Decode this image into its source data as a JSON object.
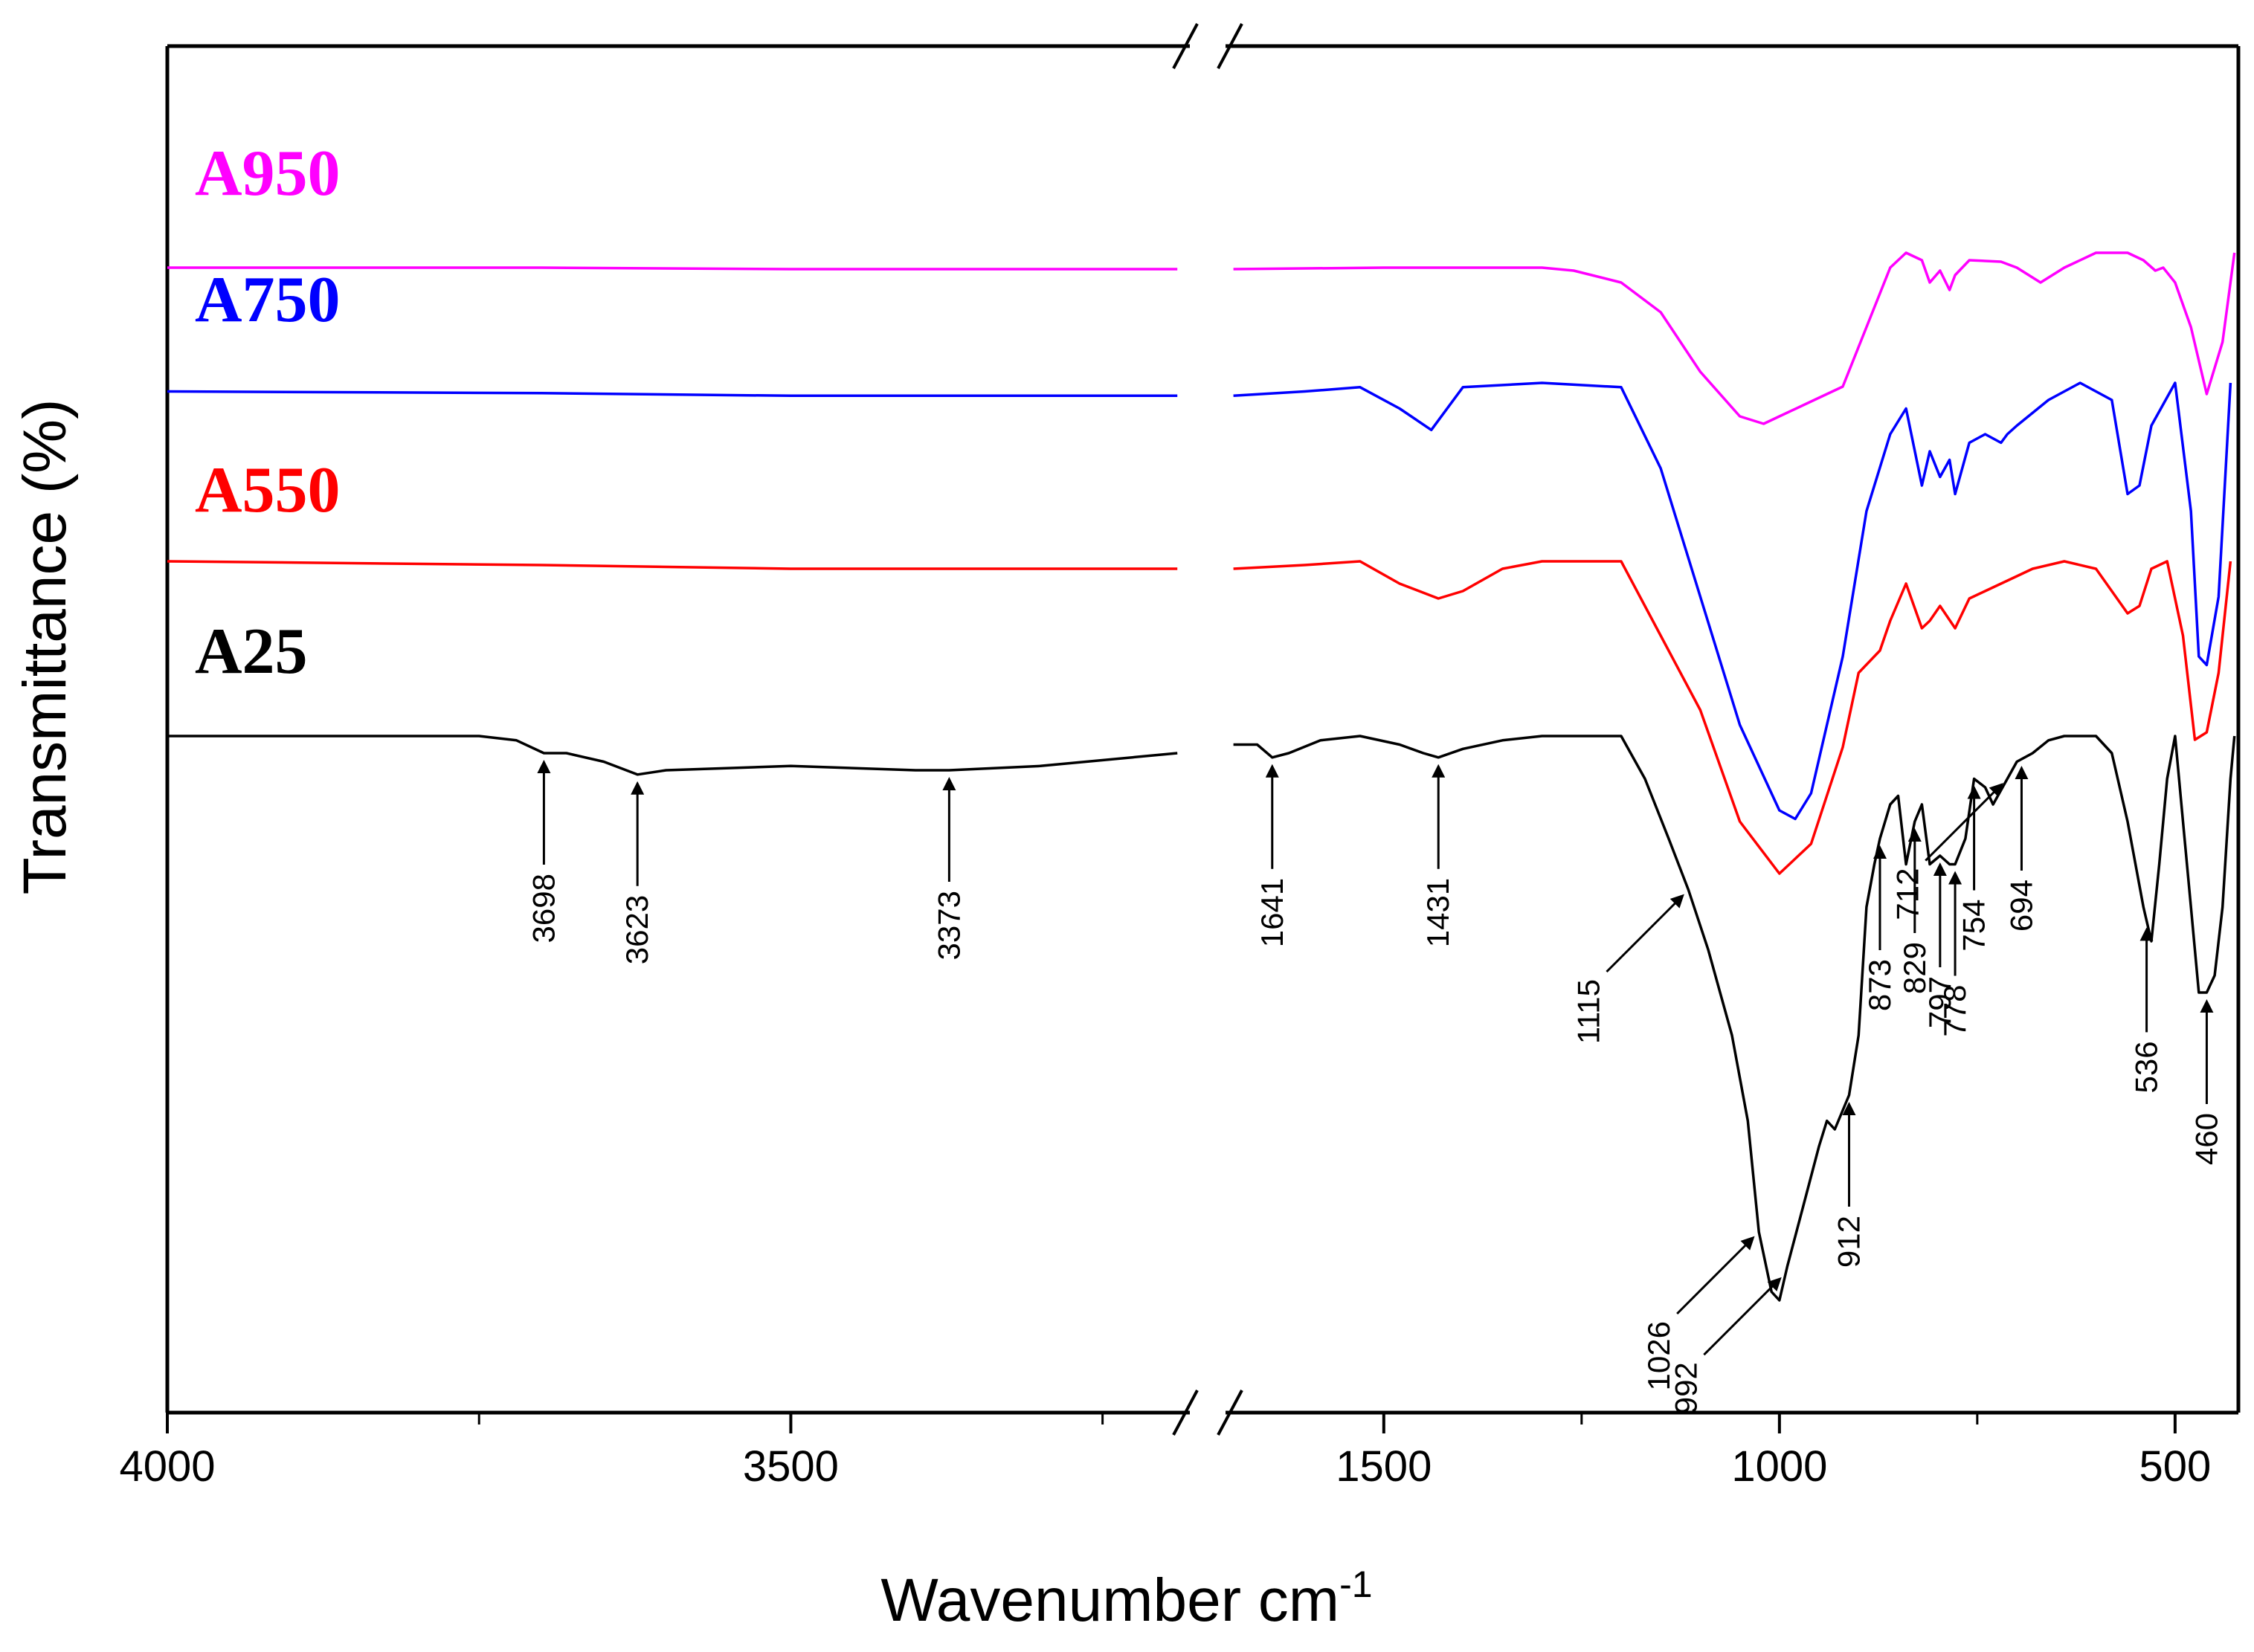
{
  "chart_data": {
    "type": "line",
    "title": "",
    "xlabel": "Wavenumber cm",
    "xlabel_sup": "-1",
    "ylabel": "Transmittance (%)",
    "x_axis": {
      "reversed": true,
      "broken": true,
      "segments": [
        {
          "range": [
            4000,
            3180
          ]
        },
        {
          "range": [
            1700,
            420
          ]
        }
      ],
      "ticks": [
        4000,
        3500,
        1500,
        1000,
        500
      ],
      "tick_labels": [
        "4000",
        "3500",
        "1500",
        "1000",
        "500"
      ],
      "minor_ticks": [
        3750,
        3250,
        1250,
        750
      ]
    },
    "series": [
      {
        "name": "A950",
        "color": "#ff00ff",
        "points": [
          [
            4000,
            0.1
          ],
          [
            3700,
            0.1
          ],
          [
            3500,
            0.11
          ],
          [
            3190,
            0.11
          ],
          [
            1690,
            0.11
          ],
          [
            1500,
            0.1
          ],
          [
            1300,
            0.1
          ],
          [
            1260,
            0.12
          ],
          [
            1200,
            0.2
          ],
          [
            1150,
            0.4
          ],
          [
            1100,
            0.8
          ],
          [
            1050,
            1.1
          ],
          [
            1020,
            1.15
          ],
          [
            1000,
            1.1
          ],
          [
            960,
            1.0
          ],
          [
            920,
            0.9
          ],
          [
            890,
            0.5
          ],
          [
            860,
            0.1
          ],
          [
            840,
            0.0
          ],
          [
            820,
            0.05
          ],
          [
            810,
            0.2
          ],
          [
            797,
            0.12
          ],
          [
            785,
            0.25
          ],
          [
            778,
            0.15
          ],
          [
            760,
            0.05
          ],
          [
            720,
            0.06
          ],
          [
            700,
            0.1
          ],
          [
            670,
            0.2
          ],
          [
            640,
            0.1
          ],
          [
            600,
            0.0
          ],
          [
            560,
            0.0
          ],
          [
            540,
            0.05
          ],
          [
            525,
            0.12
          ],
          [
            515,
            0.1
          ],
          [
            500,
            0.2
          ],
          [
            480,
            0.5
          ],
          [
            460,
            0.95
          ],
          [
            440,
            0.6
          ],
          [
            425,
            0.0
          ]
        ]
      },
      {
        "name": "A750",
        "color": "#0000ff",
        "points": [
          [
            4000,
            0.1
          ],
          [
            3700,
            0.12
          ],
          [
            3500,
            0.15
          ],
          [
            3190,
            0.15
          ],
          [
            1690,
            0.15
          ],
          [
            1600,
            0.1
          ],
          [
            1530,
            0.05
          ],
          [
            1480,
            0.3
          ],
          [
            1440,
            0.55
          ],
          [
            1400,
            0.05
          ],
          [
            1300,
            0.0
          ],
          [
            1200,
            0.05
          ],
          [
            1150,
            1.0
          ],
          [
            1100,
            2.5
          ],
          [
            1050,
            4.0
          ],
          [
            1000,
            5.0
          ],
          [
            980,
            5.1
          ],
          [
            960,
            4.8
          ],
          [
            920,
            3.2
          ],
          [
            890,
            1.5
          ],
          [
            860,
            0.6
          ],
          [
            840,
            0.3
          ],
          [
            820,
            1.2
          ],
          [
            810,
            0.8
          ],
          [
            797,
            1.1
          ],
          [
            785,
            0.9
          ],
          [
            778,
            1.3
          ],
          [
            760,
            0.7
          ],
          [
            740,
            0.6
          ],
          [
            720,
            0.7
          ],
          [
            712,
            0.6
          ],
          [
            700,
            0.5
          ],
          [
            660,
            0.2
          ],
          [
            620,
            0.0
          ],
          [
            580,
            0.2
          ],
          [
            560,
            1.3
          ],
          [
            545,
            1.2
          ],
          [
            530,
            0.5
          ],
          [
            500,
            0.0
          ],
          [
            480,
            1.5
          ],
          [
            470,
            3.2
          ],
          [
            460,
            3.3
          ],
          [
            445,
            2.5
          ],
          [
            430,
            0.0
          ]
        ]
      },
      {
        "name": "A550",
        "color": "#ff0000",
        "points": [
          [
            4000,
            0.0
          ],
          [
            3700,
            0.05
          ],
          [
            3500,
            0.1
          ],
          [
            3190,
            0.1
          ],
          [
            1690,
            0.1
          ],
          [
            1600,
            0.05
          ],
          [
            1530,
            0.0
          ],
          [
            1480,
            0.3
          ],
          [
            1431,
            0.5
          ],
          [
            1400,
            0.4
          ],
          [
            1350,
            0.1
          ],
          [
            1300,
            0.0
          ],
          [
            1200,
            0.0
          ],
          [
            1150,
            1.0
          ],
          [
            1100,
            2.0
          ],
          [
            1050,
            3.5
          ],
          [
            1000,
            4.2
          ],
          [
            960,
            3.8
          ],
          [
            920,
            2.5
          ],
          [
            900,
            1.5
          ],
          [
            873,
            1.2
          ],
          [
            860,
            0.8
          ],
          [
            840,
            0.3
          ],
          [
            820,
            0.9
          ],
          [
            810,
            0.8
          ],
          [
            797,
            0.6
          ],
          [
            778,
            0.9
          ],
          [
            760,
            0.5
          ],
          [
            740,
            0.4
          ],
          [
            720,
            0.3
          ],
          [
            700,
            0.2
          ],
          [
            680,
            0.1
          ],
          [
            640,
            0.0
          ],
          [
            600,
            0.1
          ],
          [
            560,
            0.7
          ],
          [
            545,
            0.6
          ],
          [
            530,
            0.1
          ],
          [
            510,
            0.0
          ],
          [
            490,
            1.0
          ],
          [
            475,
            2.4
          ],
          [
            460,
            2.3
          ],
          [
            445,
            1.5
          ],
          [
            430,
            0.0
          ]
        ]
      },
      {
        "name": "A25",
        "color": "#000000",
        "points": [
          [
            4000,
            0.0
          ],
          [
            3750,
            0.0
          ],
          [
            3720,
            0.05
          ],
          [
            3698,
            0.2
          ],
          [
            3680,
            0.2
          ],
          [
            3650,
            0.3
          ],
          [
            3623,
            0.45
          ],
          [
            3600,
            0.4
          ],
          [
            3500,
            0.35
          ],
          [
            3400,
            0.4
          ],
          [
            3373,
            0.4
          ],
          [
            3300,
            0.35
          ],
          [
            3190,
            0.2
          ],
          [
            1690,
            0.1
          ],
          [
            1660,
            0.1
          ],
          [
            1641,
            0.25
          ],
          [
            1620,
            0.2
          ],
          [
            1580,
            0.05
          ],
          [
            1530,
            0.0
          ],
          [
            1480,
            0.1
          ],
          [
            1450,
            0.2
          ],
          [
            1431,
            0.25
          ],
          [
            1400,
            0.15
          ],
          [
            1350,
            0.05
          ],
          [
            1300,
            0.0
          ],
          [
            1200,
            0.0
          ],
          [
            1170,
            0.5
          ],
          [
            1140,
            1.2
          ],
          [
            1115,
            1.8
          ],
          [
            1090,
            2.5
          ],
          [
            1060,
            3.5
          ],
          [
            1040,
            4.5
          ],
          [
            1026,
            5.8
          ],
          [
            1010,
            6.5
          ],
          [
            1000,
            6.6
          ],
          [
            990,
            6.2
          ],
          [
            970,
            5.5
          ],
          [
            950,
            4.8
          ],
          [
            940,
            4.5
          ],
          [
            930,
            4.6
          ],
          [
            912,
            4.2
          ],
          [
            900,
            3.5
          ],
          [
            890,
            2.0
          ],
          [
            880,
            1.5
          ],
          [
            873,
            1.2
          ],
          [
            860,
            0.8
          ],
          [
            850,
            0.7
          ],
          [
            840,
            1.5
          ],
          [
            829,
            1.0
          ],
          [
            820,
            0.8
          ],
          [
            810,
            1.5
          ],
          [
            797,
            1.4
          ],
          [
            785,
            1.5
          ],
          [
            778,
            1.5
          ],
          [
            765,
            1.2
          ],
          [
            754,
            0.5
          ],
          [
            740,
            0.6
          ],
          [
            730,
            0.8
          ],
          [
            712,
            0.5
          ],
          [
            700,
            0.3
          ],
          [
            680,
            0.2
          ],
          [
            660,
            0.05
          ],
          [
            640,
            0.0
          ],
          [
            600,
            0.0
          ],
          [
            580,
            0.2
          ],
          [
            560,
            1.0
          ],
          [
            540,
            2.0
          ],
          [
            530,
            2.4
          ],
          [
            520,
            1.5
          ],
          [
            510,
            0.5
          ],
          [
            500,
            0.0
          ],
          [
            490,
            1.0
          ],
          [
            480,
            2.0
          ],
          [
            470,
            3.0
          ],
          [
            460,
            3.0
          ],
          [
            450,
            2.8
          ],
          [
            440,
            2.0
          ],
          [
            430,
            0.5
          ],
          [
            425,
            0.0
          ]
        ]
      }
    ],
    "annotations": [
      {
        "text": "3698",
        "x": 3698,
        "series": "A25"
      },
      {
        "text": "3623",
        "x": 3623,
        "series": "A25"
      },
      {
        "text": "3373",
        "x": 3373,
        "series": "A25"
      },
      {
        "text": "1641",
        "x": 1641,
        "series": "A25"
      },
      {
        "text": "1431",
        "x": 1431,
        "series": "A25"
      },
      {
        "text": "1115",
        "x": 1115,
        "series": "A25"
      },
      {
        "text": "1026",
        "x": 1026,
        "series": "A25"
      },
      {
        "text": "992",
        "x": 992,
        "series": "A25"
      },
      {
        "text": "912",
        "x": 912,
        "series": "A25"
      },
      {
        "text": "873",
        "x": 873,
        "series": "A25"
      },
      {
        "text": "829",
        "x": 829,
        "series": "A25"
      },
      {
        "text": "797",
        "x": 797,
        "series": "A25"
      },
      {
        "text": "778",
        "x": 778,
        "series": "A25"
      },
      {
        "text": "754",
        "x": 754,
        "series": "A25"
      },
      {
        "text": "712",
        "x": 712,
        "series": "A25"
      },
      {
        "text": "694",
        "x": 694,
        "series": "A25"
      },
      {
        "text": "536",
        "x": 536,
        "series": "A25"
      },
      {
        "text": "460",
        "x": 460,
        "series": "A25"
      }
    ]
  }
}
